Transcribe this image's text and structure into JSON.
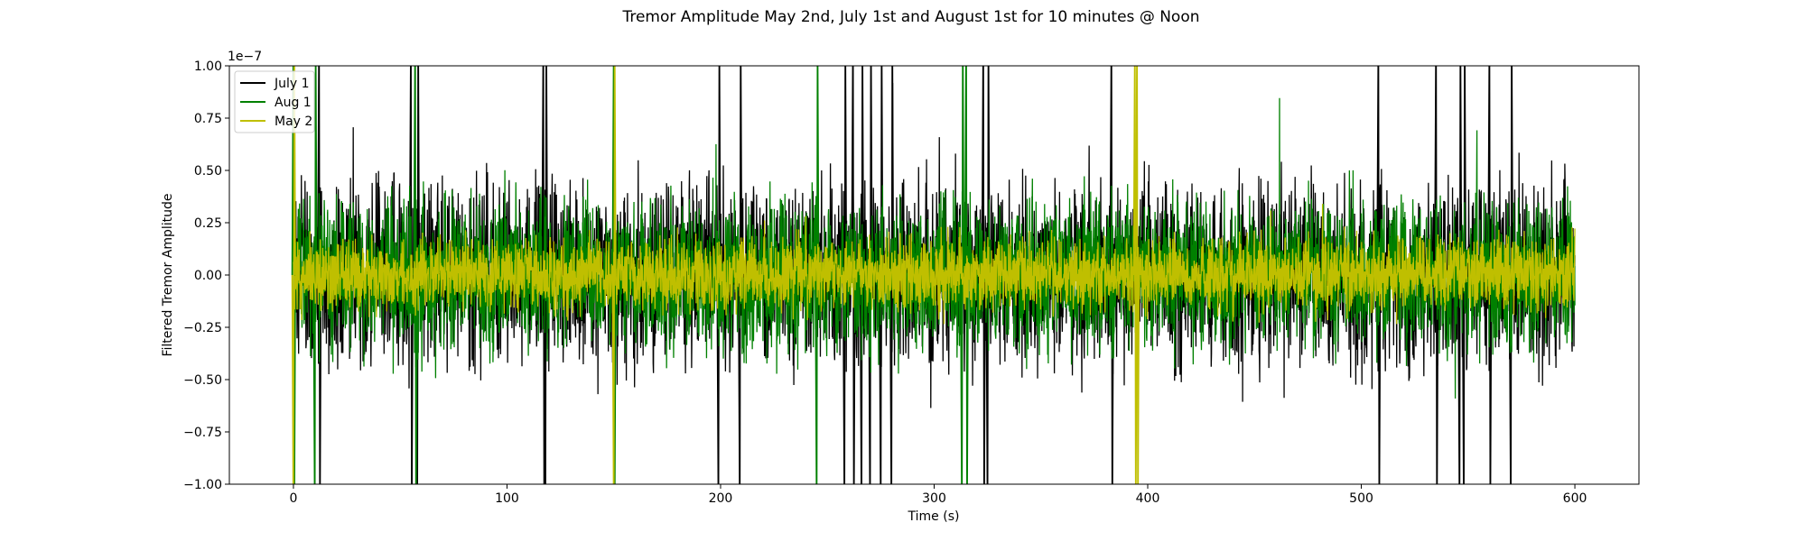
{
  "chart_data": {
    "type": "line",
    "title": "Tremor Amplitude May 2nd, July 1st and August 1st for 10 minutes @ Noon",
    "xlabel": "Time (s)",
    "ylabel": "Filtered Tremor Amplitude",
    "y_offset_label": "1e−7",
    "xlim": [
      -30,
      630
    ],
    "ylim": [
      -1.0,
      1.0
    ],
    "x_ticks": [
      0,
      100,
      200,
      300,
      400,
      500,
      600
    ],
    "x_tick_labels": [
      "0",
      "100",
      "200",
      "300",
      "400",
      "500",
      "600"
    ],
    "y_ticks": [
      -1.0,
      -0.75,
      -0.5,
      -0.25,
      0.0,
      0.25,
      0.5,
      0.75,
      1.0
    ],
    "y_tick_labels": [
      "−1.00",
      "−0.75",
      "−0.50",
      "−0.25",
      "0.00",
      "0.25",
      "0.50",
      "0.75",
      "1.00"
    ],
    "grid": false,
    "legend_position": "top-left",
    "series": [
      {
        "name": "July 1",
        "color": "#000000",
        "x_range": [
          0,
          600
        ],
        "typical_amplitude": 0.3,
        "peak_amplitude": 1.0,
        "spikes": [
          12,
          55,
          58,
          117,
          118,
          199,
          209,
          258,
          262,
          266,
          270,
          275,
          280,
          323,
          325,
          383,
          508,
          535,
          546,
          548,
          560,
          570
        ]
      },
      {
        "name": "Aug 1",
        "color": "#008000",
        "x_range": [
          0,
          600
        ],
        "typical_amplitude": 0.25,
        "peak_amplitude": 1.0,
        "spikes": [
          0,
          10,
          57,
          150,
          245,
          313,
          315
        ]
      },
      {
        "name": "May 2",
        "color": "#bfbf00",
        "x_range": [
          0,
          600
        ],
        "typical_amplitude": 0.12,
        "peak_amplitude": 1.0,
        "spikes": [
          0,
          150,
          394,
          395
        ]
      }
    ]
  }
}
